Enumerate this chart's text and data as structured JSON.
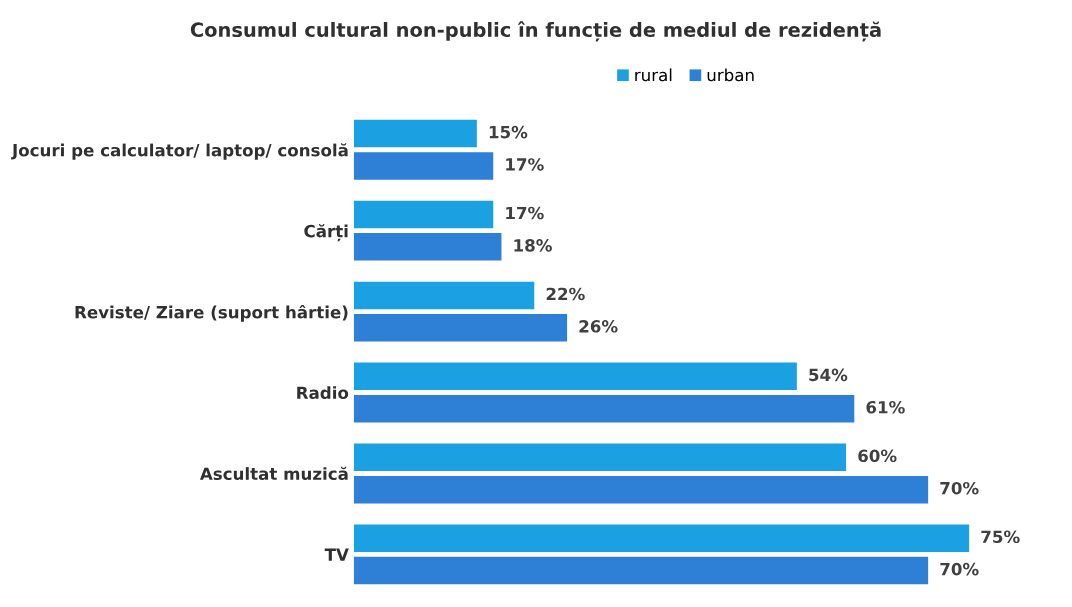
{
  "chart_data": {
    "type": "bar",
    "orientation": "horizontal",
    "title": "Consumul cultural non-public în funcție de mediul de rezidență",
    "categories": [
      "Jocuri pe calculator/ laptop/ consolă",
      "Cărți",
      "Reviste/ Ziare (suport hârtie)",
      "Radio",
      "Ascultat muzică",
      "TV"
    ],
    "series": [
      {
        "name": "rural",
        "color": "#1ba1e2",
        "values": [
          15,
          17,
          22,
          54,
          60,
          75
        ],
        "value_labels": [
          "15%",
          "17%",
          "22%",
          "54%",
          "60%",
          "75%"
        ]
      },
      {
        "name": "urban",
        "color": "#2e7fd6",
        "values": [
          17,
          18,
          26,
          61,
          70,
          70
        ],
        "value_labels": [
          "17%",
          "18%",
          "26%",
          "61%",
          "70%",
          "70%"
        ]
      }
    ],
    "tick_labels": false,
    "grid": false,
    "legend": "top"
  }
}
